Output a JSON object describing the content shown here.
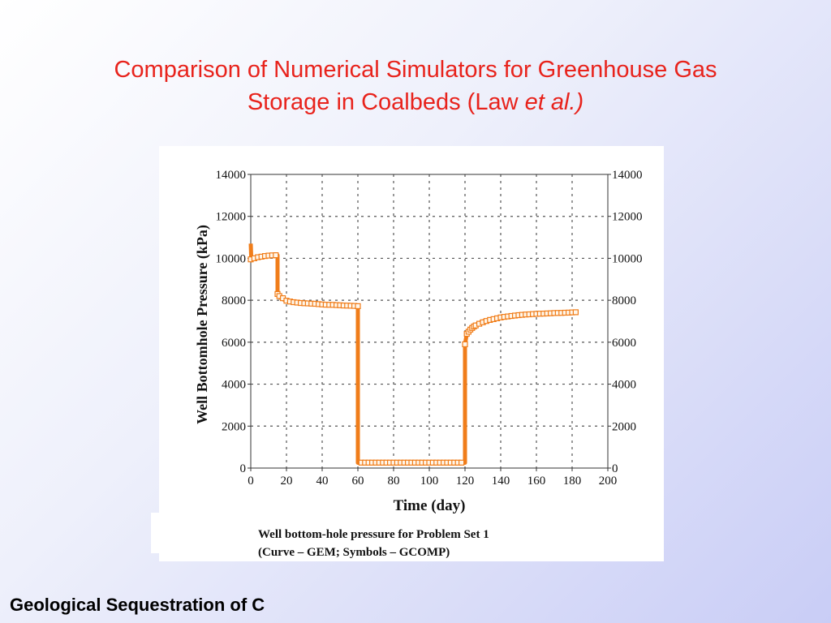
{
  "slide": {
    "title_line1": "Comparison of Numerical Simulators for Greenhouse Gas",
    "title_line2_prefix": "Storage in Coalbeds (Law ",
    "title_line2_italic": "et al.)",
    "footer": "Geological Sequestration of C"
  },
  "figure": {
    "caption_line1": "Well bottom-hole pressure for Problem Set 1",
    "caption_line2": "(Curve – GEM; Symbols – GCOMP)"
  },
  "chart_data": {
    "type": "line",
    "xlabel": "Time (day)",
    "ylabel": "Well Bottomhole Pressure (kPa)",
    "xlim": [
      0,
      200
    ],
    "ylim": [
      0,
      14000
    ],
    "x_ticks": [
      "0",
      "20",
      "40",
      "60",
      "80",
      "100",
      "120",
      "140",
      "160",
      "180",
      "200"
    ],
    "y_ticks": [
      "0",
      "2000",
      "4000",
      "6000",
      "8000",
      "10000",
      "12000",
      "14000"
    ],
    "y_ticks_right": [
      "0",
      "2000",
      "4000",
      "6000",
      "8000",
      "10000",
      "12000",
      "14000"
    ],
    "grid": true,
    "colors": {
      "series": "#f07d1a",
      "grid": "#555555",
      "axis": "#333333"
    },
    "series": [
      {
        "name": "GEM",
        "style": "curve",
        "x": [
          0,
          0.3,
          1,
          3,
          6,
          10,
          13,
          15,
          15,
          16,
          18,
          20,
          25,
          30,
          35,
          40,
          45,
          50,
          55,
          60,
          60,
          70,
          80,
          90,
          100,
          110,
          120,
          120,
          121,
          123,
          125,
          130,
          135,
          140,
          145,
          150,
          155,
          160,
          165,
          170,
          175,
          180,
          182
        ],
        "y": [
          10700,
          9900,
          9950,
          10050,
          10100,
          10150,
          10150,
          10150,
          8300,
          8150,
          8050,
          7970,
          7900,
          7860,
          7830,
          7800,
          7780,
          7760,
          7740,
          7720,
          250,
          250,
          250,
          250,
          250,
          250,
          250,
          5900,
          6400,
          6650,
          6800,
          7000,
          7100,
          7180,
          7240,
          7280,
          7320,
          7350,
          7370,
          7390,
          7400,
          7420,
          7430
        ]
      },
      {
        "name": "GCOMP",
        "style": "symbols",
        "x": [
          0,
          2,
          4,
          6,
          8,
          10,
          12,
          14,
          15,
          16,
          18,
          20,
          22,
          24,
          26,
          28,
          30,
          32,
          34,
          36,
          38,
          40,
          42,
          44,
          46,
          48,
          50,
          52,
          54,
          56,
          58,
          60,
          62,
          64,
          66,
          68,
          70,
          72,
          74,
          76,
          78,
          80,
          82,
          84,
          86,
          88,
          90,
          92,
          94,
          96,
          98,
          100,
          102,
          104,
          106,
          108,
          110,
          112,
          114,
          116,
          118,
          120,
          121,
          122,
          123,
          124,
          125,
          126,
          128,
          130,
          132,
          134,
          136,
          138,
          140,
          142,
          144,
          146,
          148,
          150,
          152,
          154,
          156,
          158,
          160,
          162,
          164,
          166,
          168,
          170,
          172,
          174,
          176,
          178,
          180,
          182
        ],
        "y": [
          9950,
          10000,
          10050,
          10080,
          10110,
          10130,
          10140,
          10150,
          8300,
          8200,
          8100,
          7980,
          7940,
          7910,
          7890,
          7870,
          7860,
          7850,
          7840,
          7830,
          7815,
          7800,
          7790,
          7785,
          7780,
          7770,
          7760,
          7750,
          7745,
          7740,
          7730,
          7720,
          260,
          260,
          260,
          260,
          260,
          260,
          260,
          260,
          260,
          260,
          260,
          260,
          260,
          260,
          260,
          260,
          260,
          260,
          260,
          260,
          260,
          260,
          260,
          260,
          260,
          260,
          260,
          260,
          260,
          5900,
          6400,
          6500,
          6600,
          6680,
          6750,
          6800,
          6880,
          6950,
          7010,
          7060,
          7100,
          7140,
          7180,
          7210,
          7230,
          7250,
          7270,
          7290,
          7305,
          7320,
          7330,
          7340,
          7350,
          7360,
          7365,
          7370,
          7380,
          7390,
          7395,
          7400,
          7405,
          7410,
          7420,
          7430
        ]
      }
    ]
  }
}
